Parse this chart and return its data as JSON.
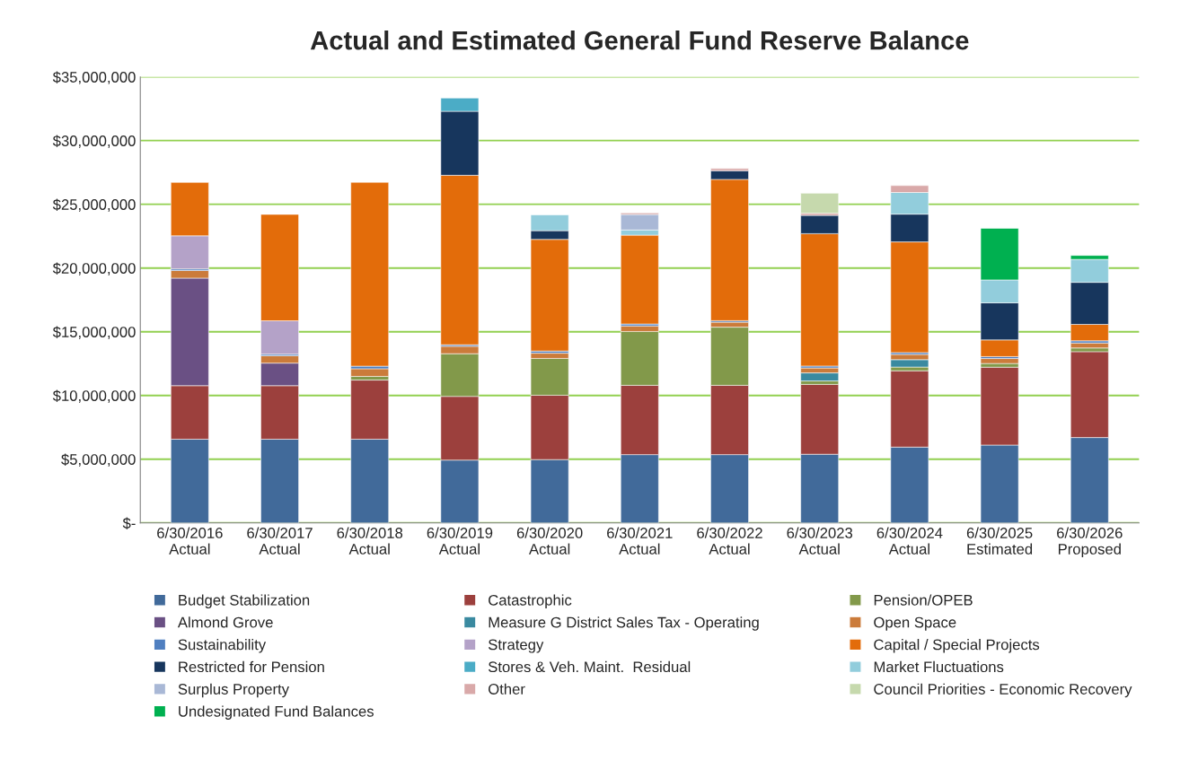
{
  "chart_data": {
    "type": "bar",
    "stacked": true,
    "title": "Actual and Estimated General Fund Reserve Balance",
    "categories": [
      "6/30/2016\nActual",
      "6/30/2017\nActual",
      "6/30/2018\nActual",
      "6/30/2019\nActual",
      "6/30/2020\nActual",
      "6/30/2021\nActual",
      "6/30/2022\nActual",
      "6/30/2023\nActual",
      "6/30/2024\nActual",
      "6/30/2025\nEstimated",
      "6/30/2026\nProposed"
    ],
    "ylim": [
      0,
      35000000
    ],
    "yticks": [
      {
        "value": 0,
        "label": "$-"
      },
      {
        "value": 5000000,
        "label": "$5,000,000"
      },
      {
        "value": 10000000,
        "label": "$10,000,000"
      },
      {
        "value": 15000000,
        "label": "$15,000,000"
      },
      {
        "value": 20000000,
        "label": "$20,000,000"
      },
      {
        "value": 25000000,
        "label": "$25,000,000"
      },
      {
        "value": 30000000,
        "label": "$30,000,000"
      },
      {
        "value": 35000000,
        "label": "$35,000,000"
      }
    ],
    "grid": "y",
    "legend": "bottom",
    "series": [
      {
        "name": "Budget Stabilization",
        "color": "#416a9a",
        "values": [
          6570000,
          6570000,
          6570000,
          4930000,
          4970000,
          5360000,
          5360000,
          5390000,
          5950000,
          6110000,
          6700000
        ]
      },
      {
        "name": "Catastrophic",
        "color": "#9c403d",
        "values": [
          4200000,
          4200000,
          4640000,
          5000000,
          5050000,
          5440000,
          5440000,
          5480000,
          5990000,
          6110000,
          6740000
        ]
      },
      {
        "name": "Pension/OPEB",
        "color": "#82994a",
        "values": [
          null,
          null,
          290000,
          3350000,
          2890000,
          4220000,
          4560000,
          270000,
          290000,
          290000,
          290000
        ]
      },
      {
        "name": "Almond Grove",
        "color": "#6a5084",
        "values": [
          8440000,
          1770000,
          null,
          null,
          null,
          null,
          null,
          null,
          null,
          null,
          null
        ]
      },
      {
        "name": "Measure G District Sales Tax - Operating",
        "color": "#3a8aa0",
        "values": [
          null,
          null,
          null,
          null,
          null,
          null,
          null,
          630000,
          580000,
          null,
          null
        ]
      },
      {
        "name": "Open Space",
        "color": "#cb7b3a",
        "values": [
          600000,
          580000,
          600000,
          580000,
          410000,
          440000,
          390000,
          390000,
          410000,
          390000,
          390000
        ]
      },
      {
        "name": "Sustainability",
        "color": "#4f7fc0",
        "values": [
          120000,
          120000,
          200000,
          120000,
          170000,
          150000,
          120000,
          150000,
          150000,
          150000,
          170000
        ]
      },
      {
        "name": "Strategy",
        "color": "#b4a2c8",
        "values": [
          2600000,
          2620000,
          null,
          null,
          null,
          null,
          null,
          null,
          null,
          null,
          null
        ]
      },
      {
        "name": "Capital / Special Projects",
        "color": "#e36c0a",
        "values": [
          4190000,
          8350000,
          14430000,
          13300000,
          8760000,
          6970000,
          11090000,
          10390000,
          8680000,
          1310000,
          1290000
        ]
      },
      {
        "name": "Restricted for Pension",
        "color": "#17365d",
        "values": [
          null,
          null,
          null,
          5020000,
          680000,
          null,
          680000,
          1430000,
          2180000,
          2910000,
          3300000
        ]
      },
      {
        "name": "Stores & Veh. Maint.  Residual",
        "color": "#4bacc6",
        "values": [
          null,
          null,
          null,
          1040000,
          null,
          null,
          null,
          null,
          null,
          null,
          null
        ]
      },
      {
        "name": "Market Fluctuations",
        "color": "#92cddc",
        "values": [
          null,
          null,
          null,
          null,
          1240000,
          410000,
          null,
          null,
          1700000,
          1800000,
          1800000
        ]
      },
      {
        "name": "Surplus Property",
        "color": "#a9b8d6",
        "values": [
          null,
          null,
          null,
          null,
          null,
          1210000,
          null,
          null,
          null,
          null,
          null
        ]
      },
      {
        "name": "Other",
        "color": "#d9a9a9",
        "values": [
          null,
          null,
          null,
          null,
          null,
          120000,
          170000,
          170000,
          540000,
          null,
          null
        ]
      },
      {
        "name": "Council Priorities - Economic Recovery",
        "color": "#c6d9ad",
        "values": [
          null,
          null,
          null,
          null,
          null,
          null,
          null,
          1570000,
          null,
          null,
          null
        ]
      },
      {
        "name": "Undesignated Fund Balances",
        "color": "#00b050",
        "values": [
          null,
          null,
          null,
          null,
          null,
          null,
          null,
          null,
          null,
          4050000,
          310000
        ]
      }
    ]
  }
}
